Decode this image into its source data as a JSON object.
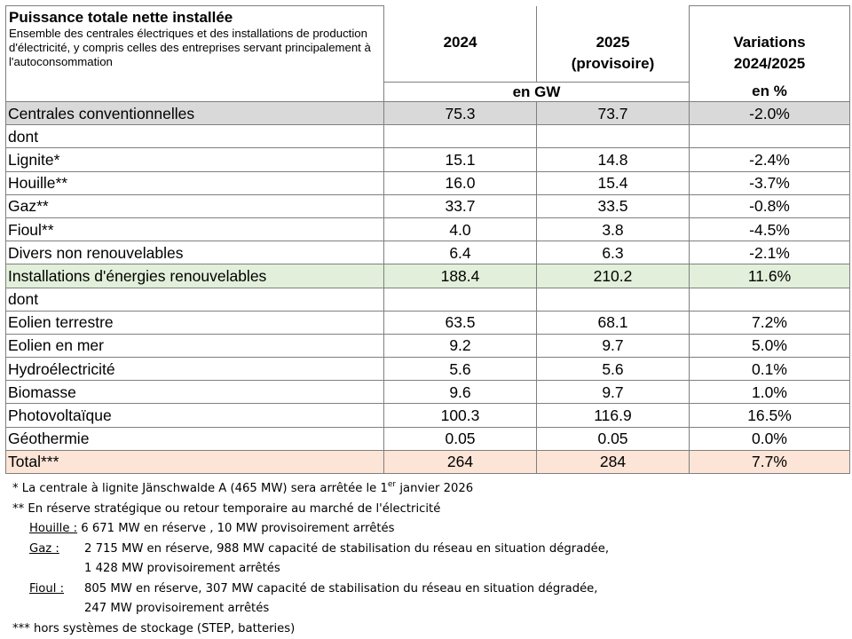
{
  "header": {
    "title": "Puissance totale nette installée",
    "subtitle": "Ensemble des centrales électriques et des installations de production d'électricité, y compris celles des entreprises servant principalement à l'autoconsommation",
    "col_2024": "2024",
    "col_2025_line1": "2025",
    "col_2025_line2": "(provisoire)",
    "col_var_line1": "Variations",
    "col_var_line2": "2024/2025",
    "unit_gw": "en GW",
    "unit_pct": "en %"
  },
  "rows": [
    {
      "label": "Centrales conventionnelles",
      "v2024": "75.3",
      "v2025": "73.7",
      "var": "-2.0%"
    },
    {
      "label": "dont",
      "v2024": "",
      "v2025": "",
      "var": ""
    },
    {
      "label": "Lignite*",
      "v2024": "15.1",
      "v2025": "14.8",
      "var": "-2.4%"
    },
    {
      "label": "Houille**",
      "v2024": "16.0",
      "v2025": "15.4",
      "var": "-3.7%"
    },
    {
      "label": "Gaz**",
      "v2024": "33.7",
      "v2025": "33.5",
      "var": "-0.8%"
    },
    {
      "label": "Fioul**",
      "v2024": "4.0",
      "v2025": "3.8",
      "var": "-4.5%"
    },
    {
      "label": "Divers non renouvelables",
      "v2024": "6.4",
      "v2025": "6.3",
      "var": "-2.1%"
    },
    {
      "label": "Installations d'énergies renouvelables",
      "v2024": "188.4",
      "v2025": "210.2",
      "var": "11.6%"
    },
    {
      "label": "dont",
      "v2024": "",
      "v2025": "",
      "var": ""
    },
    {
      "label": "Eolien terrestre",
      "v2024": "63.5",
      "v2025": "68.1",
      "var": "7.2%"
    },
    {
      "label": "Eolien en mer",
      "v2024": "9.2",
      "v2025": "9.7",
      "var": "5.0%"
    },
    {
      "label": "Hydroélectricité",
      "v2024": "5.6",
      "v2025": "5.6",
      "var": "0.1%"
    },
    {
      "label": "Biomasse",
      "v2024": "9.6",
      "v2025": "9.7",
      "var": "1.0%"
    },
    {
      "label": "Photovoltaïque",
      "v2024": "100.3",
      "v2025": "116.9",
      "var": "16.5%"
    },
    {
      "label": "Géothermie",
      "v2024": "0.05",
      "v2025": "0.05",
      "var": "0.0%"
    },
    {
      "label": "Total***",
      "v2024": "264",
      "v2025": "284",
      "var": "7.7%"
    }
  ],
  "notes": {
    "n1_before": "* La centrale à lignite Jänschwalde A (465 MW) sera arrêtée le 1",
    "n1_sup": "er",
    "n1_after": " janvier 2026",
    "n2": "** En réserve stratégique ou retour temporaire au marché de l'électricité",
    "houille_label": "Houille :",
    "houille_text": " 6 671  MW en réserve , 10 MW provisoirement arrêtés",
    "gaz_label": "Gaz :",
    "gaz_text1": "2 715 MW en réserve, 988 MW capacité de stabilisation du réseau en situation dégradée,",
    "gaz_text2": "1 428 MW provisoirement arrêtés",
    "fioul_label": "Fioul :",
    "fioul_text1": "805 MW en réserve, 307 MW capacité de stabilisation du réseau en situation dégradée,",
    "fioul_text2": "247 MW provisoirement arrêtés",
    "n3": "*** hors systèmes de stockage (STEP, batteries)"
  }
}
